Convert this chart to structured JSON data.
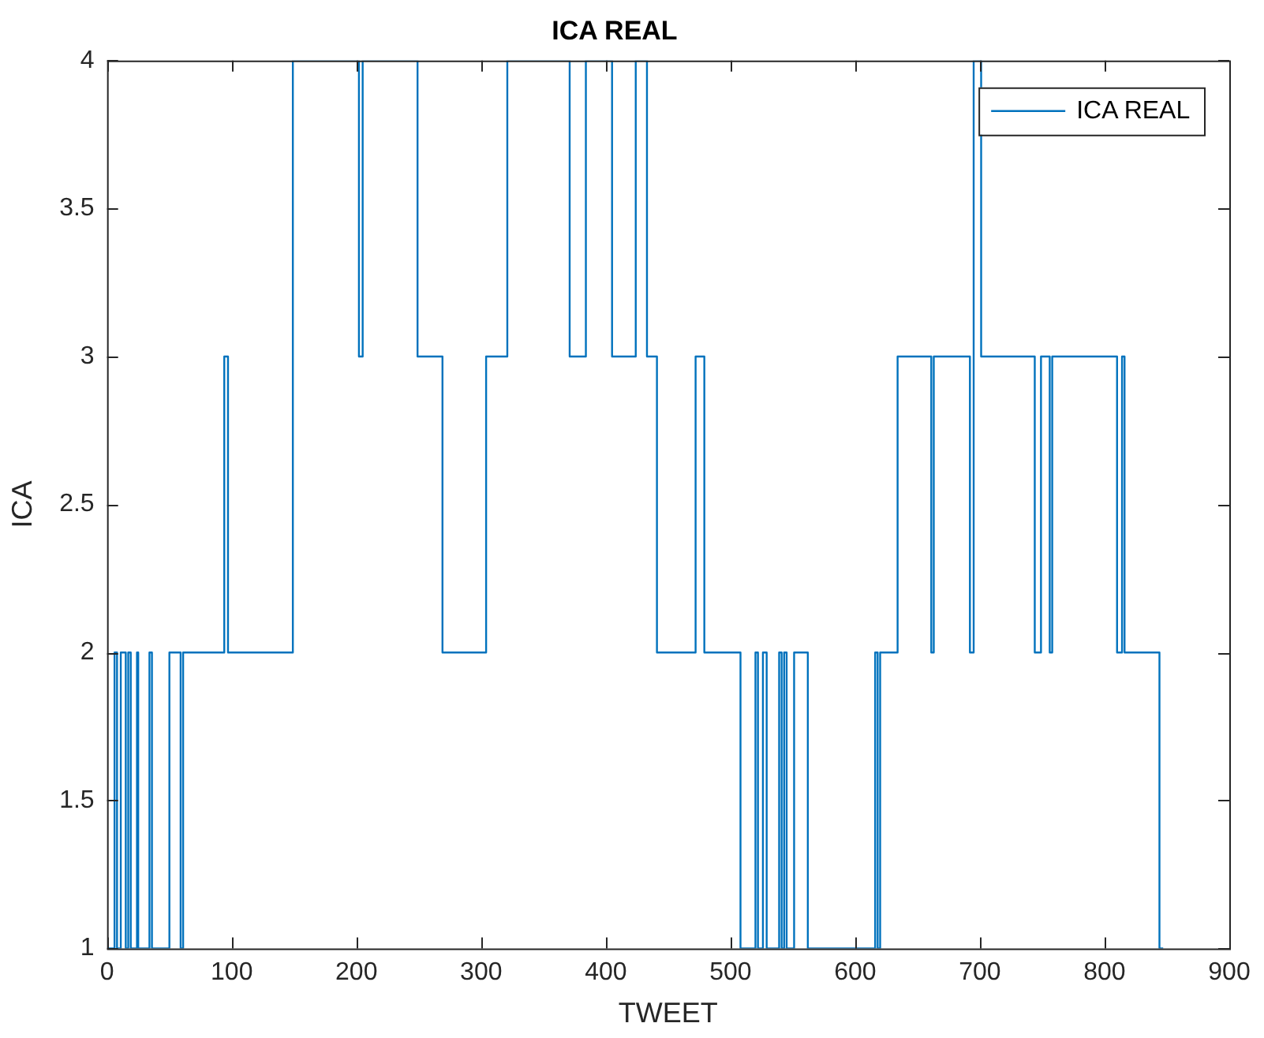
{
  "chart_data": {
    "type": "step",
    "title": "ICA REAL",
    "xlabel": "TWEET",
    "ylabel": "ICA",
    "xlim": [
      0,
      900
    ],
    "xticks": [
      0,
      100,
      200,
      300,
      400,
      500,
      600,
      700,
      800,
      900
    ],
    "ylim": [
      1,
      4
    ],
    "yticks": [
      1,
      1.5,
      2,
      2.5,
      3,
      3.5,
      4
    ],
    "grid": false,
    "legend": "top right",
    "series": [
      {
        "name": "ICA REAL",
        "color": "#0072bd",
        "x": [
          0,
          6,
          8,
          11,
          15,
          17,
          19,
          24,
          25,
          34,
          36,
          50,
          59,
          61,
          94,
          97,
          149,
          202,
          205,
          249,
          269,
          304,
          321,
          371,
          384,
          405,
          424,
          433,
          441,
          472,
          479,
          508,
          520,
          522,
          526,
          529,
          539,
          541,
          543,
          545,
          551,
          562,
          616,
          618,
          620,
          634,
          661,
          663,
          692,
          695,
          701,
          744,
          749,
          756,
          758,
          810,
          814,
          816,
          844,
          847
        ],
        "values": [
          1,
          2,
          1,
          2,
          1,
          2,
          1,
          2,
          1,
          2,
          1,
          2,
          1,
          2,
          3,
          2,
          4,
          3,
          4,
          3,
          2,
          3,
          4,
          3,
          4,
          3,
          4,
          3,
          2,
          3,
          2,
          1,
          2,
          1,
          2,
          1,
          2,
          1,
          2,
          1,
          2,
          1,
          2,
          1,
          2,
          3,
          2,
          3,
          2,
          4,
          3,
          2,
          3,
          2,
          3,
          2,
          3,
          2,
          1,
          1
        ]
      }
    ]
  }
}
